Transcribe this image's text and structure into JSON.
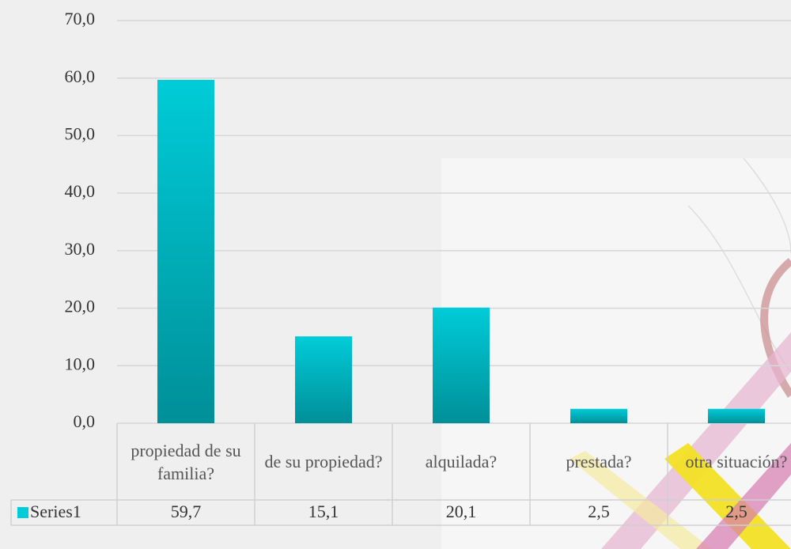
{
  "chart_data": {
    "type": "bar",
    "categories": [
      "propiedad de su familia?",
      "de su propiedad?",
      "alquilada?",
      "prestada?",
      "otra situación?"
    ],
    "series": [
      {
        "name": "Series1",
        "color": "#00ccd8",
        "values": [
          59.7,
          15.1,
          20.1,
          2.5,
          2.5
        ],
        "value_labels": [
          "59,7",
          "15,1",
          "20,1",
          "2,5",
          "2,5"
        ]
      }
    ],
    "ylim": [
      0,
      70
    ],
    "yticks": [
      {
        "value": 0,
        "label": "0,0"
      },
      {
        "value": 10,
        "label": "10,0"
      },
      {
        "value": 20,
        "label": "20,0"
      },
      {
        "value": 30,
        "label": "30,0"
      },
      {
        "value": 40,
        "label": "40,0"
      },
      {
        "value": 50,
        "label": "50,0"
      },
      {
        "value": 60,
        "label": "60,0"
      },
      {
        "value": 70,
        "label": "70,0"
      }
    ],
    "grid": true
  }
}
